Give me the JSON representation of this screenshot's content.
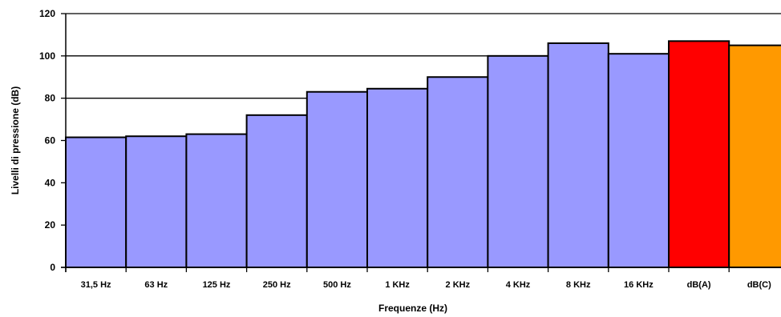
{
  "chart_data": {
    "type": "bar",
    "title": "",
    "xlabel": "Frequenze (Hz)",
    "ylabel": "Livelli di pressione (dB)",
    "ylim": [
      0,
      120
    ],
    "yticks": [
      0,
      20,
      40,
      60,
      80,
      100,
      120
    ],
    "grid": "horizontal",
    "legend": "none",
    "categories": [
      "31,5 Hz",
      "63 Hz",
      "125 Hz",
      "250 Hz",
      "500 Hz",
      "1 KHz",
      "2 KHz",
      "4 KHz",
      "8 KHz",
      "16 KHz",
      "dB(A)",
      "dB(C)"
    ],
    "values": [
      61.5,
      62,
      63,
      72,
      83,
      84.5,
      90,
      100,
      106,
      101,
      107,
      105
    ],
    "colors": [
      "#9999FF",
      "#9999FF",
      "#9999FF",
      "#9999FF",
      "#9999FF",
      "#9999FF",
      "#9999FF",
      "#9999FF",
      "#9999FF",
      "#9999FF",
      "#FF0000",
      "#FF9900"
    ]
  }
}
